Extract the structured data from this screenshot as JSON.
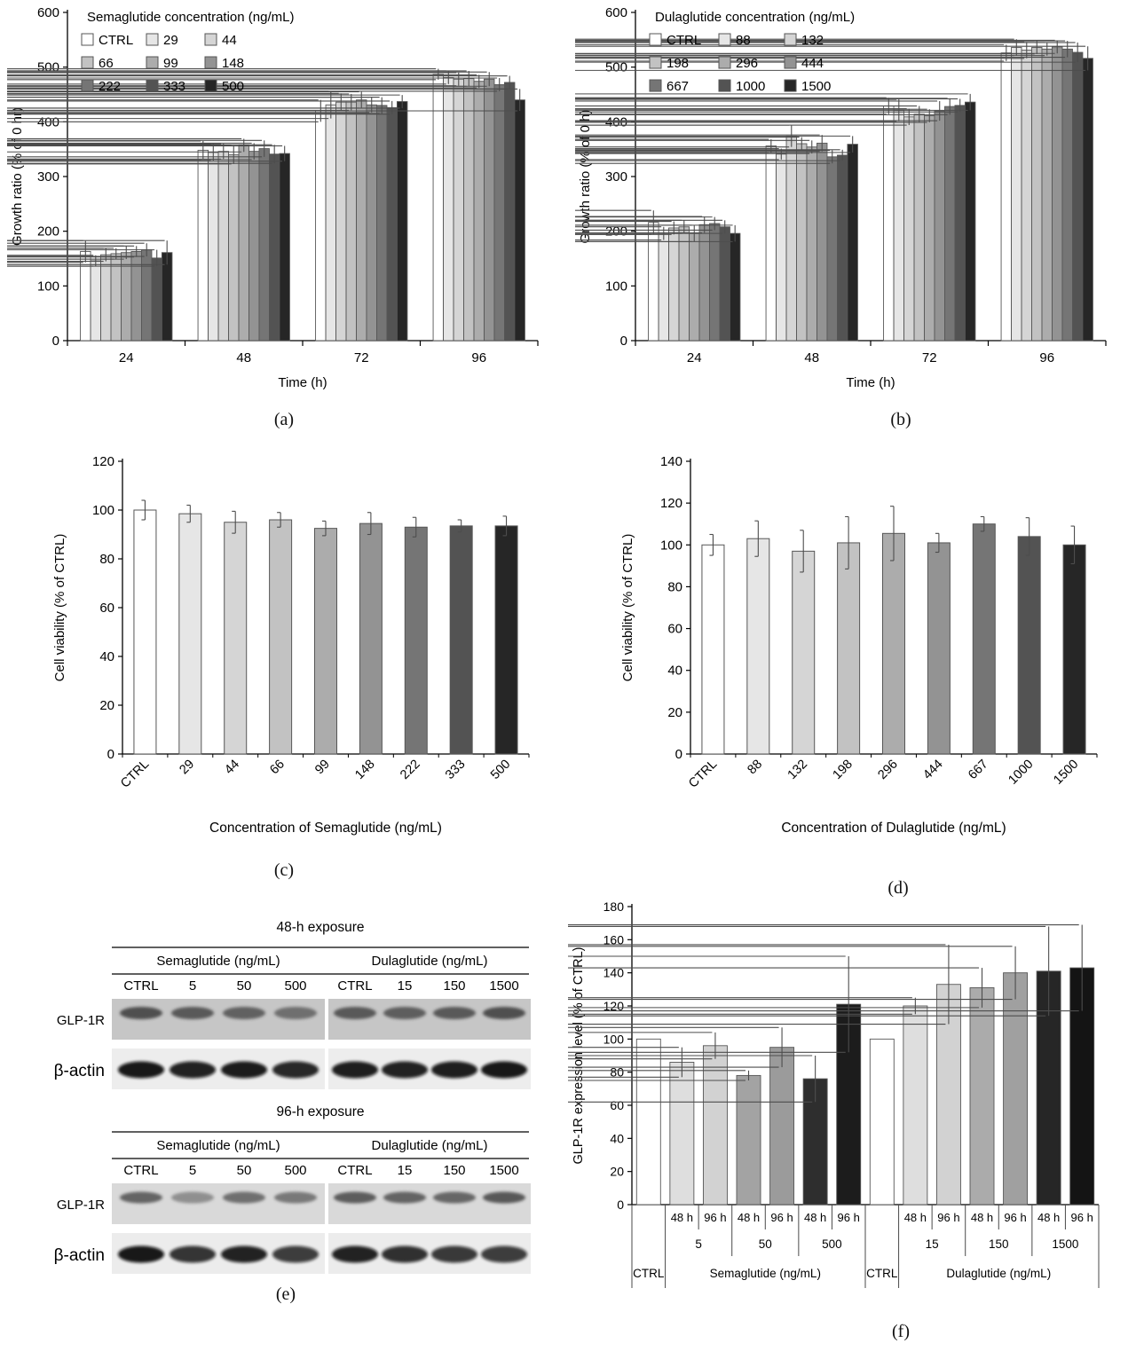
{
  "captions": {
    "a": "(a)",
    "b": "(b)",
    "c": "(c)",
    "d": "(d)",
    "e": "(e)",
    "f": "(f)"
  },
  "colors": {
    "bar_palette": [
      "#ffffff",
      "#e6e6e6",
      "#d5d5d5",
      "#c2c2c2",
      "#acacac",
      "#939393",
      "#757575",
      "#535353",
      "#262626"
    ],
    "bar_stroke": "#565656",
    "error_bar": "#4d4d4d",
    "axis": "#000000"
  },
  "chart_data": [
    {
      "id": "chart-a",
      "type": "bar",
      "variant": "grouped",
      "legend_title": "Semaglutide concentration (ng/mL)",
      "xlabel": "Time (h)",
      "ylabel": "Growth ratio (% of 0 hr)",
      "ylim": [
        0,
        600
      ],
      "ytick": 100,
      "grid": false,
      "legend_position": "top-left-inside",
      "categories": [
        "24",
        "48",
        "72",
        "96"
      ],
      "series": [
        {
          "name": "CTRL",
          "values": [
            163,
            348,
            420,
            487
          ],
          "errors": [
            20,
            17,
            20,
            10
          ]
        },
        {
          "name": "29",
          "values": [
            146,
            344,
            431,
            481
          ],
          "errors": [
            10,
            15,
            25,
            12
          ]
        },
        {
          "name": "44",
          "values": [
            157,
            346,
            436,
            478
          ],
          "errors": [
            12,
            14,
            16,
            12
          ]
        },
        {
          "name": "66",
          "values": [
            159,
            340,
            436,
            479
          ],
          "errors": [
            10,
            17,
            15,
            14
          ]
        },
        {
          "name": "99",
          "values": [
            161,
            357,
            440,
            474
          ],
          "errors": [
            12,
            12,
            15,
            12
          ]
        },
        {
          "name": "148",
          "values": [
            163,
            346,
            431,
            478
          ],
          "errors": [
            10,
            15,
            14,
            13
          ]
        },
        {
          "name": "222",
          "values": [
            166,
            351,
            430,
            468
          ],
          "errors": [
            12,
            15,
            15,
            12
          ]
        },
        {
          "name": "333",
          "values": [
            151,
            341,
            426,
            472
          ],
          "errors": [
            15,
            17,
            12,
            12
          ]
        },
        {
          "name": "500",
          "values": [
            161,
            342,
            437,
            440
          ],
          "errors": [
            22,
            14,
            12,
            20
          ]
        }
      ]
    },
    {
      "id": "chart-b",
      "type": "bar",
      "variant": "grouped",
      "legend_title": "Dulaglutide concentration (ng/mL)",
      "xlabel": "Time (h)",
      "ylabel": "Growth ratio (% of 0 h)",
      "ylim": [
        0,
        600
      ],
      "ytick": 100,
      "grid": false,
      "legend_position": "top-left-inside",
      "categories": [
        "24",
        "48",
        "72",
        "96"
      ],
      "series": [
        {
          "name": "CTRL",
          "values": [
            216,
            356,
            429,
            526
          ],
          "errors": [
            22,
            12,
            15,
            15
          ]
        },
        {
          "name": "88",
          "values": [
            196,
            341,
            421,
            536
          ],
          "errors": [
            12,
            10,
            20,
            15
          ]
        },
        {
          "name": "132",
          "values": [
            206,
            374,
            409,
            531
          ],
          "errors": [
            12,
            20,
            15,
            15
          ]
        },
        {
          "name": "198",
          "values": [
            208,
            360,
            414,
            536
          ],
          "errors": [
            12,
            12,
            15,
            12
          ]
        },
        {
          "name": "296",
          "values": [
            196,
            354,
            411,
            533
          ],
          "errors": [
            15,
            12,
            12,
            12
          ]
        },
        {
          "name": "444",
          "values": [
            212,
            361,
            420,
            537
          ],
          "errors": [
            15,
            15,
            18,
            12
          ]
        },
        {
          "name": "667",
          "values": [
            214,
            336,
            428,
            533
          ],
          "errors": [
            12,
            12,
            15,
            15
          ]
        },
        {
          "name": "1000",
          "values": [
            208,
            339,
            430,
            527
          ],
          "errors": [
            12,
            10,
            12,
            18
          ]
        },
        {
          "name": "1500",
          "values": [
            196,
            359,
            436,
            516
          ],
          "errors": [
            15,
            15,
            15,
            22
          ]
        }
      ]
    },
    {
      "id": "chart-c",
      "type": "bar",
      "variant": "simple",
      "xlabel": "Concentration of Semaglutide (ng/mL)",
      "ylabel": "Cell viability (% of CTRL)",
      "ylim": [
        0,
        120
      ],
      "ytick": 20,
      "grid": false,
      "categories": [
        "CTRL",
        "29",
        "44",
        "66",
        "99",
        "148",
        "222",
        "333",
        "500"
      ],
      "values": [
        100,
        98.5,
        95,
        96,
        92.5,
        94.5,
        93,
        93.5,
        93.5
      ],
      "errors": [
        4,
        3.5,
        4.5,
        3,
        3,
        4.5,
        4,
        2.5,
        4
      ]
    },
    {
      "id": "chart-d",
      "type": "bar",
      "variant": "simple",
      "xlabel": "Concentration of Dulaglutide (ng/mL)",
      "ylabel": "Cell viability (% of CTRL)",
      "ylim": [
        0,
        140
      ],
      "ytick": 20,
      "grid": false,
      "categories": [
        "CTRL",
        "88",
        "132",
        "198",
        "296",
        "444",
        "667",
        "1000",
        "1500"
      ],
      "values": [
        100,
        103,
        97,
        101,
        105.5,
        101,
        110,
        104,
        100
      ],
      "errors": [
        5,
        8.5,
        10,
        12.5,
        13,
        4.5,
        3.5,
        9,
        9
      ]
    },
    {
      "id": "chart-f",
      "type": "bar",
      "variant": "two-level",
      "ylabel": "GLP-1R expression level (% of CTRL)",
      "ylim": [
        0,
        180
      ],
      "ytick": 20,
      "grid": false,
      "bars": [
        {
          "time_label": "",
          "value": 100,
          "error": 0,
          "color": "#ffffff"
        },
        {
          "time_label": "48 h",
          "value": 86,
          "error": 9,
          "color": "#dedede"
        },
        {
          "time_label": "96 h",
          "value": 96,
          "error": 8,
          "color": "#d2d2d2"
        },
        {
          "time_label": "48 h",
          "value": 78,
          "error": 3,
          "color": "#a3a3a3"
        },
        {
          "time_label": "96 h",
          "value": 95,
          "error": 12,
          "color": "#9b9b9b"
        },
        {
          "time_label": "48 h",
          "value": 76,
          "error": 14,
          "color": "#2e2e2e"
        },
        {
          "time_label": "96 h",
          "value": 121,
          "error": 29,
          "color": "#1c1c1c"
        },
        {
          "time_label": "",
          "value": 100,
          "error": 0,
          "color": "#ffffff"
        },
        {
          "time_label": "48 h",
          "value": 120,
          "error": 5,
          "color": "#dedede"
        },
        {
          "time_label": "96 h",
          "value": 133,
          "error": 24,
          "color": "#d2d2d2"
        },
        {
          "time_label": "48 h",
          "value": 131,
          "error": 12,
          "color": "#ababab"
        },
        {
          "time_label": "96 h",
          "value": 140,
          "error": 16,
          "color": "#a0a0a0"
        },
        {
          "time_label": "48 h",
          "value": 141,
          "error": 27,
          "color": "#262626"
        },
        {
          "time_label": "96 h",
          "value": 143,
          "error": 26,
          "color": "#141414"
        }
      ],
      "pair_labels": [
        {
          "label": "5",
          "slots": [
            1,
            2
          ]
        },
        {
          "label": "50",
          "slots": [
            3,
            4
          ]
        },
        {
          "label": "500",
          "slots": [
            5,
            6
          ]
        },
        {
          "label": "15",
          "slots": [
            8,
            9
          ]
        },
        {
          "label": "150",
          "slots": [
            10,
            11
          ]
        },
        {
          "label": "1500",
          "slots": [
            12,
            13
          ]
        }
      ],
      "section_labels": [
        {
          "label": "CTRL",
          "from": 0,
          "to": 1
        },
        {
          "label": "Semaglutide (ng/mL)",
          "from": 1,
          "to": 7
        },
        {
          "label": "CTRL",
          "from": 7,
          "to": 8
        },
        {
          "label": "Dulaglutide (ng/mL)",
          "from": 8,
          "to": 14
        }
      ]
    }
  ],
  "blots": {
    "panels": [
      {
        "title": "48-h exposure",
        "groups": [
          {
            "label": "Semaglutide (ng/mL)",
            "lanes": [
              "CTRL",
              "5",
              "50",
              "500"
            ]
          },
          {
            "label": "Dulaglutide (ng/mL)",
            "lanes": [
              "CTRL",
              "15",
              "150",
              "1500"
            ]
          }
        ],
        "rows": [
          {
            "label": "GLP-1R",
            "strip_bg": "#c6c6c6",
            "band_color": "#3a3a3a",
            "band_ry": 7,
            "intensities": [
              0.85,
              0.78,
              0.72,
              0.62,
              0.78,
              0.74,
              0.78,
              0.85
            ]
          },
          {
            "label": "β-actin",
            "strip_bg": "#ededed",
            "band_color": "#0e0e0e",
            "band_ry": 9.5,
            "intensities": [
              0.95,
              0.9,
              0.93,
              0.88,
              0.92,
              0.9,
              0.92,
              0.95
            ]
          }
        ]
      },
      {
        "title": "96-h exposure",
        "groups": [
          {
            "label": "Semaglutide (ng/mL)",
            "lanes": [
              "CTRL",
              "5",
              "50",
              "500"
            ]
          },
          {
            "label": "Dulaglutide (ng/mL)",
            "lanes": [
              "CTRL",
              "15",
              "150",
              "1500"
            ]
          }
        ],
        "rows": [
          {
            "label": "GLP-1R",
            "strip_bg": "#d9d9d9",
            "band_color": "#474747",
            "band_ry": 6.5,
            "intensities": [
              0.8,
              0.5,
              0.72,
              0.66,
              0.85,
              0.8,
              0.78,
              0.88
            ]
          },
          {
            "label": "β-actin",
            "strip_bg": "#ececec",
            "band_color": "#0e0e0e",
            "band_ry": 9.5,
            "intensities": [
              0.95,
              0.82,
              0.9,
              0.78,
              0.9,
              0.84,
              0.8,
              0.78
            ]
          }
        ]
      }
    ]
  }
}
